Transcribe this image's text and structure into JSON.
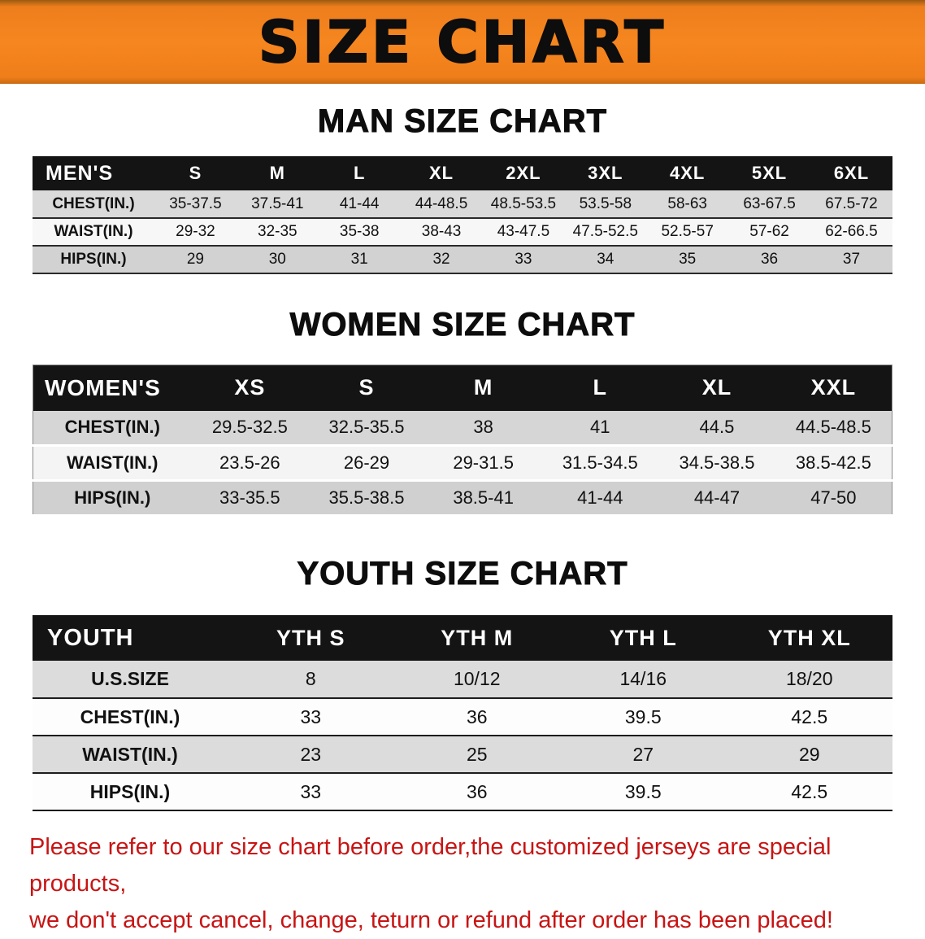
{
  "banner": {
    "title": "SIZE CHART",
    "background_color": "#f5831f",
    "text_color": "#0d0d0d"
  },
  "colors": {
    "table_header_black": "#141414",
    "row_gray": "#d8d8d8",
    "row_white": "#f7f7f7",
    "disclaimer_red": "#c81414"
  },
  "sections": {
    "men": {
      "heading": "MAN SIZE CHART",
      "table": {
        "header": [
          "MEN'S",
          "S",
          "M",
          "L",
          "XL",
          "2XL",
          "3XL",
          "4XL",
          "5XL",
          "6XL"
        ],
        "rows": [
          [
            "CHEST(IN.)",
            "35-37.5",
            "37.5-41",
            "41-44",
            "44-48.5",
            "48.5-53.5",
            "53.5-58",
            "58-63",
            "63-67.5",
            "67.5-72"
          ],
          [
            "WAIST(IN.)",
            "29-32",
            "32-35",
            "35-38",
            "38-43",
            "43-47.5",
            "47.5-52.5",
            "52.5-57",
            "57-62",
            "62-66.5"
          ],
          [
            "HIPS(IN.)",
            "29",
            "30",
            "31",
            "32",
            "33",
            "34",
            "35",
            "36",
            "37"
          ]
        ]
      }
    },
    "women": {
      "heading": "WOMEN SIZE CHART",
      "table": {
        "header": [
          "WOMEN'S",
          "XS",
          "S",
          "M",
          "L",
          "XL",
          "XXL"
        ],
        "rows": [
          [
            "CHEST(IN.)",
            "29.5-32.5",
            "32.5-35.5",
            "38",
            "41",
            "44.5",
            "44.5-48.5"
          ],
          [
            "WAIST(IN.)",
            "23.5-26",
            "26-29",
            "29-31.5",
            "31.5-34.5",
            "34.5-38.5",
            "38.5-42.5"
          ],
          [
            "HIPS(IN.)",
            "33-35.5",
            "35.5-38.5",
            "38.5-41",
            "41-44",
            "44-47",
            "47-50"
          ]
        ]
      }
    },
    "youth": {
      "heading": "YOUTH SIZE CHART",
      "table": {
        "header": [
          "YOUTH",
          "YTH S",
          "YTH M",
          "YTH L",
          "YTH XL"
        ],
        "rows": [
          [
            "U.S.SIZE",
            "8",
            "10/12",
            "14/16",
            "18/20"
          ],
          [
            "CHEST(IN.)",
            "33",
            "36",
            "39.5",
            "42.5"
          ],
          [
            "WAIST(IN.)",
            "23",
            "25",
            "27",
            "29"
          ],
          [
            "HIPS(IN.)",
            "33",
            "36",
            "39.5",
            "42.5"
          ]
        ]
      }
    }
  },
  "disclaimer": {
    "line1": "Please refer to our size chart before order,the customized jerseys are special products,",
    "line2": "we don't accept cancel, change, teturn or refund after order has been placed!"
  }
}
